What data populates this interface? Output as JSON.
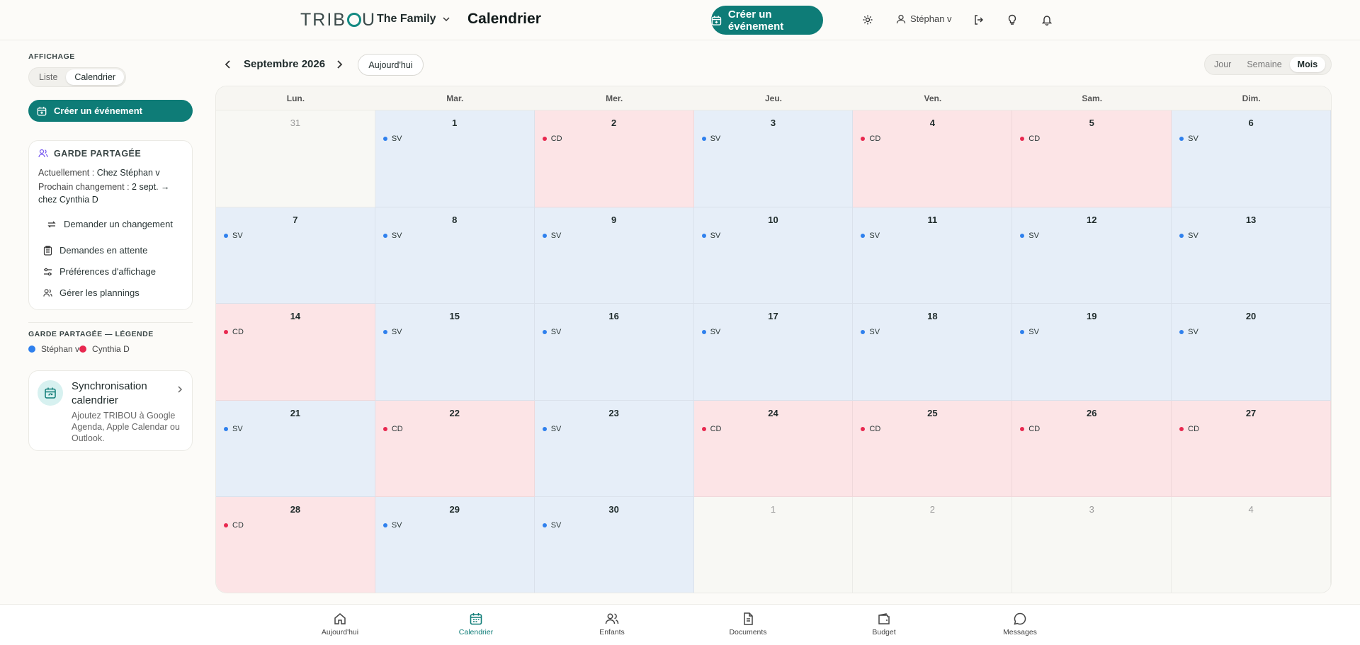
{
  "header": {
    "logo": "TRIBOU",
    "family": "The Family",
    "title": "Calendrier",
    "create_label": "Créer un événement",
    "user_name": "Stéphan v"
  },
  "sidebar": {
    "display_label": "AFFICHAGE",
    "toggle": [
      "Liste",
      "Calendrier"
    ],
    "create_label": "Créer un événement",
    "garde": {
      "title": "GARDE PARTAGÉE",
      "current_prefix": "Actuellement : ",
      "current_value": "Chez Stéphan v",
      "next_prefix": "Prochain changement : ",
      "next_value": "2 sept. → chez Cynthia D",
      "request_label": "Demander un changement",
      "actions": [
        "Demandes en attente",
        "Préférences d'affichage",
        "Gérer les plannings"
      ]
    },
    "legend_title": "GARDE PARTAGÉE — LÉGENDE",
    "legend": [
      {
        "name": "Stéphan v",
        "color": "#2f80ed"
      },
      {
        "name": "Cynthia D",
        "color": "#e8284f"
      }
    ],
    "sync": {
      "title": "Synchronisation calendrier",
      "desc": "Ajoutez TRIBOU à Google Agenda, Apple Calendar ou Outlook."
    }
  },
  "toolbar": {
    "month": "Septembre 2026",
    "today_label": "Aujourd'hui",
    "views": [
      "Jour",
      "Semaine",
      "Mois"
    ],
    "active_view": "Mois"
  },
  "calendar": {
    "weekdays": [
      "Lun.",
      "Mar.",
      "Mer.",
      "Jeu.",
      "Ven.",
      "Sam.",
      "Dim."
    ],
    "colors": {
      "SV": "#2f80ed",
      "CD": "#e8284f"
    },
    "days": [
      {
        "n": "31",
        "o": true,
        "g": ""
      },
      {
        "n": "1",
        "g": "SV"
      },
      {
        "n": "2",
        "g": "CD"
      },
      {
        "n": "3",
        "g": "SV"
      },
      {
        "n": "4",
        "g": "CD"
      },
      {
        "n": "5",
        "g": "CD"
      },
      {
        "n": "6",
        "g": "SV"
      },
      {
        "n": "7",
        "g": "SV"
      },
      {
        "n": "8",
        "g": "SV"
      },
      {
        "n": "9",
        "g": "SV"
      },
      {
        "n": "10",
        "g": "SV"
      },
      {
        "n": "11",
        "g": "SV"
      },
      {
        "n": "12",
        "g": "SV"
      },
      {
        "n": "13",
        "g": "SV"
      },
      {
        "n": "14",
        "g": "CD"
      },
      {
        "n": "15",
        "g": "SV"
      },
      {
        "n": "16",
        "g": "SV"
      },
      {
        "n": "17",
        "g": "SV"
      },
      {
        "n": "18",
        "g": "SV"
      },
      {
        "n": "19",
        "g": "SV"
      },
      {
        "n": "20",
        "g": "SV"
      },
      {
        "n": "21",
        "g": "SV"
      },
      {
        "n": "22",
        "g": "CD"
      },
      {
        "n": "23",
        "g": "SV"
      },
      {
        "n": "24",
        "g": "CD"
      },
      {
        "n": "25",
        "g": "CD"
      },
      {
        "n": "26",
        "g": "CD"
      },
      {
        "n": "27",
        "g": "CD"
      },
      {
        "n": "28",
        "g": "CD"
      },
      {
        "n": "29",
        "g": "SV"
      },
      {
        "n": "30",
        "g": "SV"
      },
      {
        "n": "1",
        "o": true,
        "g": ""
      },
      {
        "n": "2",
        "o": true,
        "g": ""
      },
      {
        "n": "3",
        "o": true,
        "g": ""
      },
      {
        "n": "4",
        "o": true,
        "g": ""
      }
    ]
  },
  "bottom_nav": [
    {
      "label": "Aujourd'hui",
      "icon": "home-icon",
      "active": false
    },
    {
      "label": "Calendrier",
      "icon": "calendar-icon",
      "active": true
    },
    {
      "label": "Enfants",
      "icon": "users-icon",
      "active": false
    },
    {
      "label": "Documents",
      "icon": "document-icon",
      "active": false
    },
    {
      "label": "Budget",
      "icon": "wallet-icon",
      "active": false
    },
    {
      "label": "Messages",
      "icon": "message-icon",
      "active": false
    }
  ]
}
